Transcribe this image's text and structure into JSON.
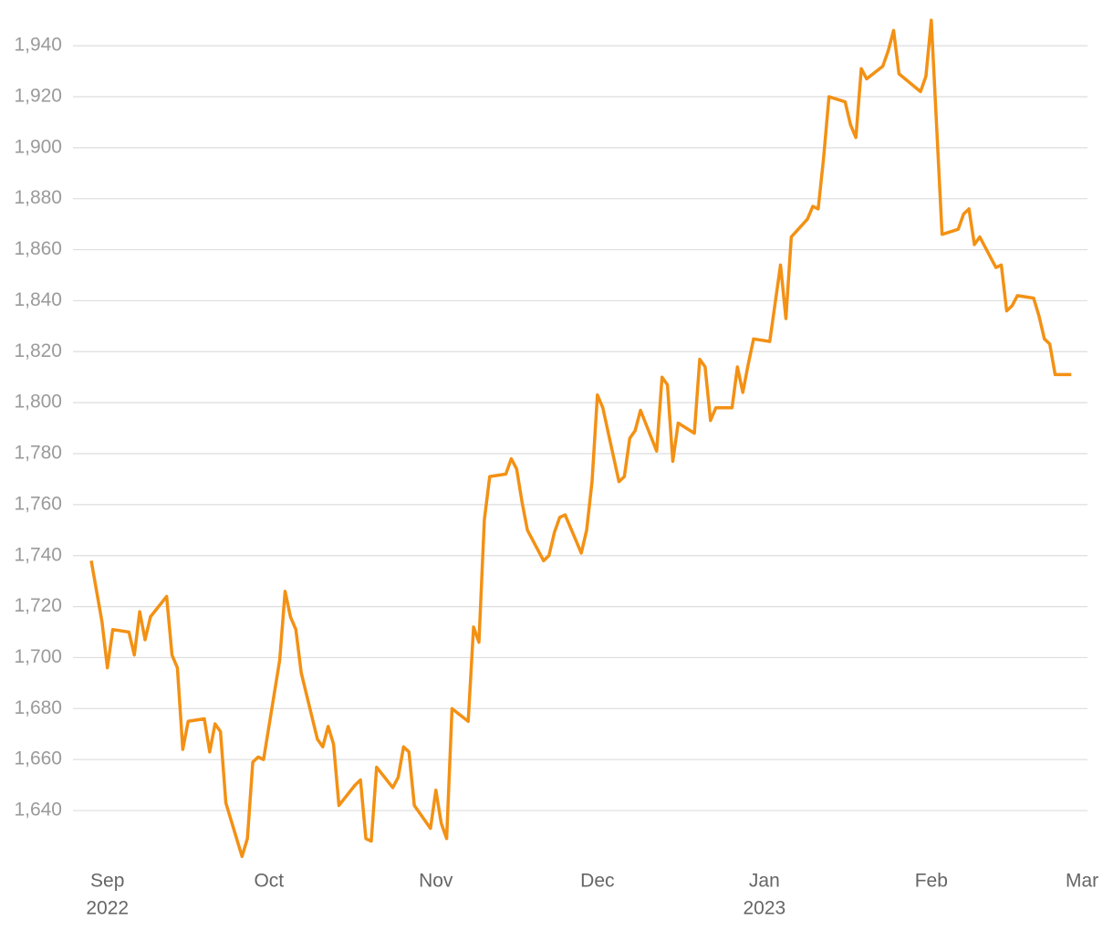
{
  "chart_data": {
    "type": "line",
    "color": "#f39114",
    "grid": true,
    "x": [
      -3,
      -1,
      0,
      1,
      4,
      5,
      6,
      7,
      8,
      11,
      12,
      13,
      14,
      15,
      18,
      19,
      20,
      21,
      22,
      25,
      26,
      27,
      28,
      29,
      32,
      33,
      34,
      35,
      36,
      39,
      40,
      41,
      42,
      43,
      46,
      47,
      48,
      49,
      50,
      53,
      54,
      55,
      56,
      57,
      60,
      61,
      62,
      63,
      64,
      67,
      68,
      69,
      70,
      71,
      74,
      75,
      76,
      77,
      78,
      81,
      82,
      83,
      84,
      85,
      88,
      89,
      90,
      91,
      92,
      95,
      96,
      97,
      98,
      99,
      102,
      103,
      104,
      105,
      106,
      109,
      110,
      111,
      112,
      113,
      116,
      117,
      118,
      119,
      120,
      123,
      125,
      126,
      127,
      130,
      131,
      132,
      133,
      134,
      137,
      138,
      139,
      140,
      141,
      144,
      145,
      146,
      147,
      151,
      152,
      153,
      155,
      158,
      159,
      160,
      161,
      162,
      165,
      166,
      167,
      168,
      169,
      172,
      173,
      174,
      175,
      176,
      179
    ],
    "values": [
      1738,
      1714,
      1696,
      1711,
      1710,
      1701,
      1718,
      1707,
      1716,
      1724,
      1701,
      1696,
      1664,
      1675,
      1676,
      1663,
      1674,
      1671,
      1643,
      1622,
      1629,
      1659,
      1661,
      1660,
      1699,
      1726,
      1716,
      1711,
      1694,
      1668,
      1665,
      1673,
      1666,
      1642,
      1650,
      1652,
      1629,
      1628,
      1657,
      1649,
      1653,
      1665,
      1663,
      1642,
      1633,
      1648,
      1635,
      1629,
      1680,
      1675,
      1712,
      1706,
      1754,
      1771,
      1772,
      1778,
      1774,
      1761,
      1750,
      1738,
      1740,
      1749,
      1755,
      1756,
      1741,
      1750,
      1769,
      1803,
      1798,
      1769,
      1771,
      1786,
      1789,
      1797,
      1781,
      1810,
      1807,
      1777,
      1792,
      1788,
      1817,
      1814,
      1793,
      1798,
      1798,
      1814,
      1804,
      1815,
      1825,
      1824,
      1854,
      1833,
      1865,
      1872,
      1877,
      1876,
      1896,
      1920,
      1918,
      1909,
      1904,
      1931,
      1927,
      1932,
      1938,
      1946,
      1929,
      1922,
      1928,
      1950,
      1866,
      1868,
      1874,
      1876,
      1862,
      1865,
      1853,
      1854,
      1836,
      1838,
      1842,
      1841,
      1834,
      1825,
      1823,
      1811,
      1811
    ],
    "xlim": [
      -3,
      182
    ],
    "xticks": [
      {
        "value": 0,
        "label": "Sep"
      },
      {
        "value": 30,
        "label": "Oct"
      },
      {
        "value": 61,
        "label": "Nov"
      },
      {
        "value": 91,
        "label": "Dec"
      },
      {
        "value": 122,
        "label": "Jan"
      },
      {
        "value": 153,
        "label": "Feb"
      },
      {
        "value": 181,
        "label": "Mar"
      }
    ],
    "year_labels": [
      {
        "value": 0,
        "label": "2022"
      },
      {
        "value": 122,
        "label": "2023"
      }
    ],
    "ylim": [
      1620,
      1952
    ],
    "yticks": [
      {
        "value": 1640,
        "label": "1,640"
      },
      {
        "value": 1660,
        "label": "1,660"
      },
      {
        "value": 1680,
        "label": "1,680"
      },
      {
        "value": 1700,
        "label": "1,700"
      },
      {
        "value": 1720,
        "label": "1,720"
      },
      {
        "value": 1740,
        "label": "1,740"
      },
      {
        "value": 1760,
        "label": "1,760"
      },
      {
        "value": 1780,
        "label": "1,780"
      },
      {
        "value": 1800,
        "label": "1,800"
      },
      {
        "value": 1820,
        "label": "1,820"
      },
      {
        "value": 1840,
        "label": "1,840"
      },
      {
        "value": 1860,
        "label": "1,860"
      },
      {
        "value": 1880,
        "label": "1,880"
      },
      {
        "value": 1900,
        "label": "1,900"
      },
      {
        "value": 1920,
        "label": "1,920"
      },
      {
        "value": 1940,
        "label": "1,940"
      }
    ]
  }
}
